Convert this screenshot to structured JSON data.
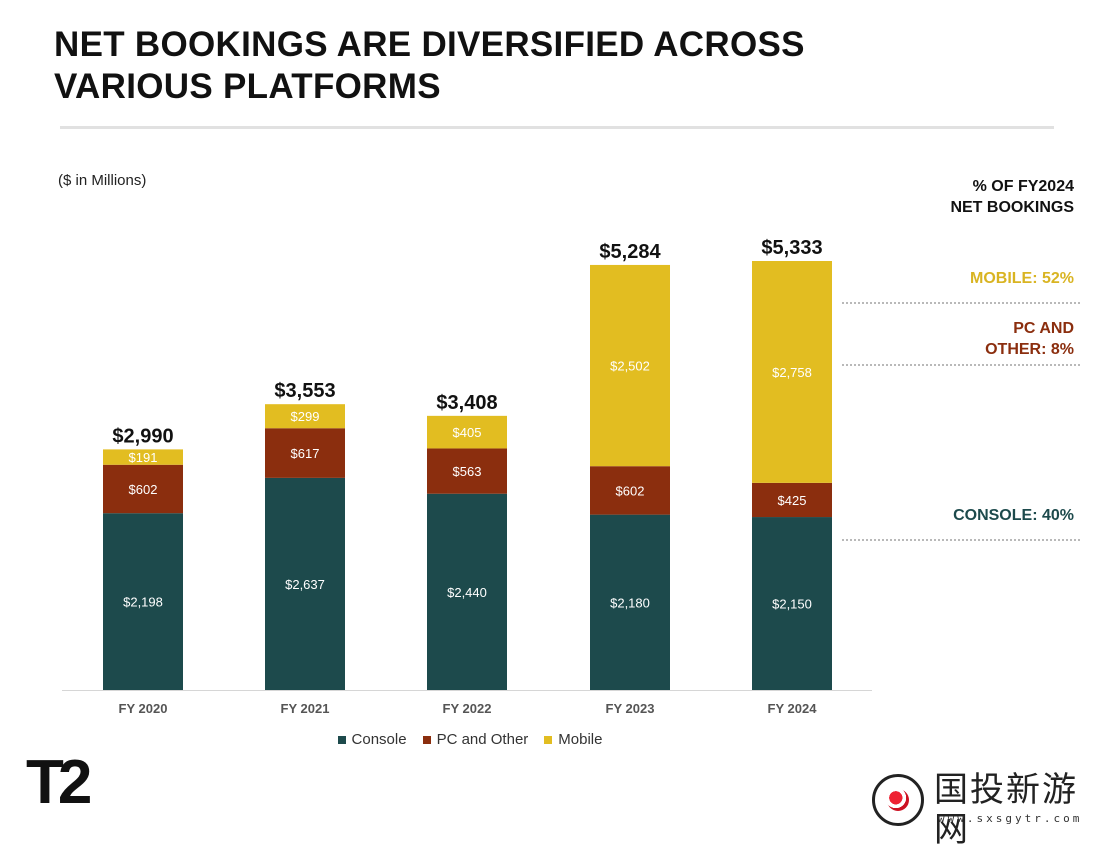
{
  "title_lines": [
    "NET BOOKINGS ARE DIVERSIFIED ACROSS",
    "VARIOUS PLATFORMS"
  ],
  "unit_note": "($ in Millions)",
  "side_panel": {
    "header_lines": [
      "% OF FY2024",
      "NET BOOKINGS"
    ],
    "mobile": [
      "MOBILE: 52%"
    ],
    "pc": [
      "PC AND",
      "OTHER: 8%"
    ],
    "console": [
      "CONSOLE: 40%"
    ]
  },
  "colors": {
    "console": "#1d4a4c",
    "pc": "#8b2e0e",
    "mobile": "#e2bd21",
    "mobile_text": "#d9b422",
    "pc_text": "#8b2e0e",
    "console_text": "#1d4a4c"
  },
  "logo": {
    "brand": "T2"
  },
  "watermark": {
    "site_name": "国投新游网",
    "url": "www.sxsgytr.com"
  },
  "chart_data": {
    "type": "bar",
    "stacked": true,
    "categories": [
      "FY 2020",
      "FY 2021",
      "FY 2022",
      "FY 2023",
      "FY 2024"
    ],
    "series": [
      {
        "name": "Console",
        "values": [
          2198,
          2637,
          2440,
          2180,
          2150
        ],
        "labels": [
          "$2,198",
          "$2,637",
          "$2,440",
          "$2,180",
          "$2,150"
        ]
      },
      {
        "name": "PC and Other",
        "values": [
          602,
          617,
          563,
          602,
          425
        ],
        "labels": [
          "$602",
          "$617",
          "$563",
          "$602",
          "$425"
        ]
      },
      {
        "name": "Mobile",
        "values": [
          191,
          299,
          405,
          2502,
          2758
        ],
        "labels": [
          "$191",
          "$299",
          "$405",
          "$2,502",
          "$2,758"
        ]
      }
    ],
    "totals": [
      2990,
      3553,
      3408,
      5284,
      5333
    ],
    "total_labels": [
      "$2,990",
      "$3,553",
      "$3,408",
      "$5,284",
      "$5,333"
    ],
    "ylim": [
      0,
      5333
    ],
    "grid": false,
    "legend_position": "bottom"
  }
}
